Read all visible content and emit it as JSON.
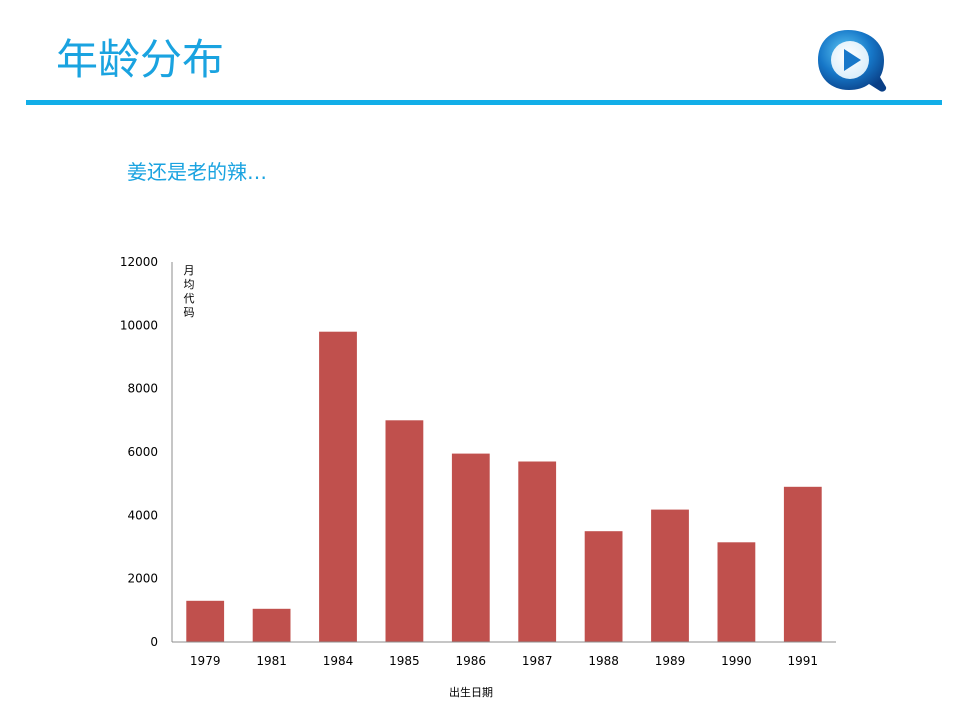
{
  "title": "年龄分布",
  "subtitle": "姜还是老的辣…",
  "colors": {
    "accent": "#1aa3e0",
    "bar": "#c0504d"
  },
  "logo": {
    "icon": "play-icon"
  },
  "chart_data": {
    "type": "bar",
    "categories": [
      "1979",
      "1981",
      "1984",
      "1985",
      "1986",
      "1987",
      "1988",
      "1989",
      "1990",
      "1991"
    ],
    "values": [
      1300,
      1050,
      9800,
      7000,
      5950,
      5700,
      3500,
      4180,
      3150,
      4900
    ],
    "ylabel": "月均代码",
    "xlabel": "出生日期",
    "ylim": [
      0,
      12000
    ],
    "yticks": [
      "0",
      "2000",
      "4000",
      "6000",
      "8000",
      "10000",
      "12000"
    ],
    "grid": false,
    "legend": "none"
  }
}
